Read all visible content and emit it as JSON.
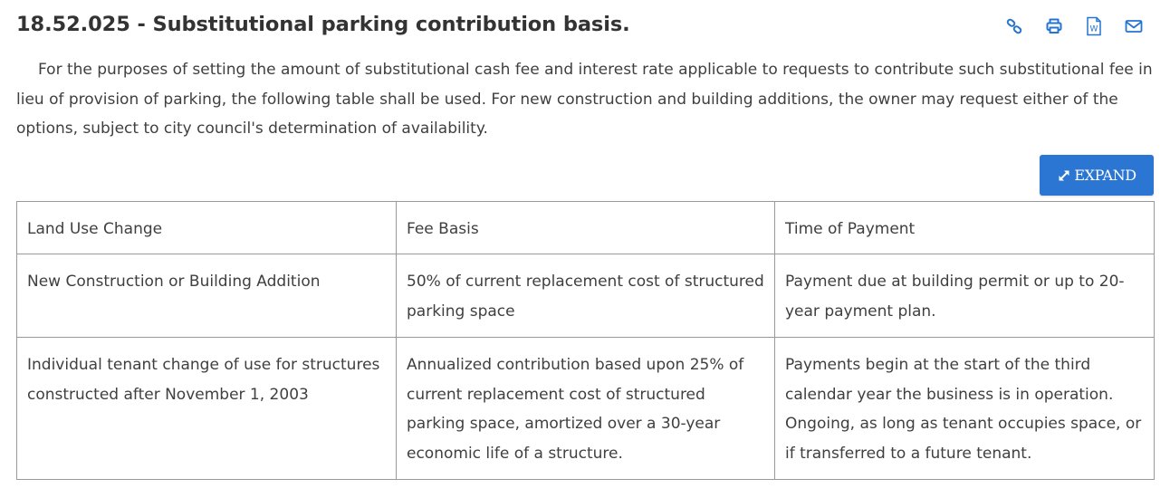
{
  "section": {
    "title": "18.52.025 - Substitutional parking contribution basis.",
    "intro": "For the purposes of setting the amount of substitutional cash fee and interest rate applicable to requests to contribute such substitutional fee in lieu of provision of parking, the following table shall be used. For new construction and building additions, the owner may request either of the options, subject to city council's determination of availability."
  },
  "toolbar": {
    "icons": [
      "link-icon",
      "print-icon",
      "word-download-icon",
      "email-icon"
    ],
    "word_icon_letter": "W",
    "accent": "#2474d0"
  },
  "expand_button": {
    "label": "EXPAND",
    "icon": "expand-arrows-icon",
    "background": "#2b76d2"
  },
  "table": {
    "header": [
      "Land Use Change",
      "Fee Basis",
      "Time of Payment"
    ],
    "rows": [
      [
        "New Construction or Building Addition",
        "50% of current replacement cost of structured parking space",
        "Payment due at building permit or up to 20-year payment plan."
      ],
      [
        "Individual tenant change of use for structures constructed after November 1, 2003",
        "Annualized contribution based upon 25% of current replacement cost of structured parking space, amortized over a 30-year economic life of a structure.",
        "Payments begin at the start of the third calendar year the business is in operation. Ongoing, as long as tenant occupies space, or if transferred to a future tenant."
      ]
    ]
  }
}
